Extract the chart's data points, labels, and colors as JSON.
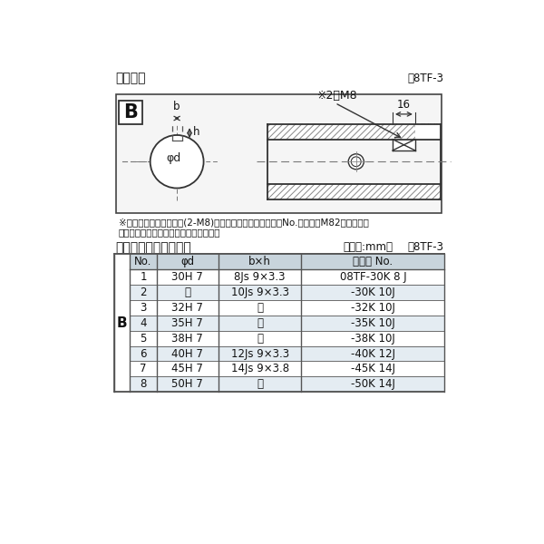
{
  "title_diagram": "軸穴形状",
  "ref_diagram": "図8TF-3",
  "title_table": "軸穴形状コードー覧表",
  "table_ref": "表8TF-3",
  "table_unit": "（単位:mm）",
  "note_line1": "※セットボルト用タップ(2-M8)が必要な場合は右記コードNo.の末尾にM82を付ける。",
  "note_line2": "（セットボルトは付属されています。）",
  "col_headers": [
    "No.",
    "φd",
    "b×h",
    "コード No."
  ],
  "rows": [
    [
      "1",
      "30H 7",
      "8Js 9×3.3",
      "08TF-30K 8 J"
    ],
    [
      "2",
      "〃",
      "10Js 9×3.3",
      "-30K 10J"
    ],
    [
      "3",
      "32H 7",
      "〃",
      "-32K 10J"
    ],
    [
      "4",
      "35H 7",
      "〃",
      "-35K 10J"
    ],
    [
      "5",
      "38H 7",
      "〃",
      "-38K 10J"
    ],
    [
      "6",
      "40H 7",
      "12Js 9×3.3",
      "-40K 12J"
    ],
    [
      "7",
      "45H 7",
      "14Js 9×3.8",
      "-45K 14J"
    ],
    [
      "8",
      "50H 7",
      "〃",
      "-50K 14J"
    ]
  ],
  "bg_color": "#ffffff",
  "table_header_bg": "#c8d4dc",
  "table_row_bg1": "#ffffff",
  "table_row_bg2": "#e4ecf2",
  "table_border": "#555555",
  "text_color": "#111111",
  "dim_color": "#333333",
  "hatch_color": "#888888",
  "line_color": "#333333"
}
